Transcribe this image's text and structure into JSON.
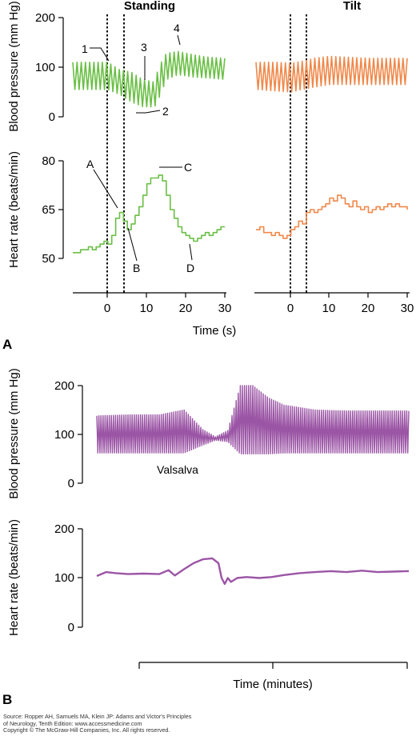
{
  "panel_a_label": "A",
  "panel_b_label": "B",
  "colors": {
    "standing": "#6abf45",
    "tilt": "#f0884a",
    "panel_b": "#9b55a5"
  },
  "source": {
    "line1": "Source: Ropper AH, Samuels MA, Klein JP: Adams and Victor's Principles",
    "line2": "of Neurology, Tenth Edition: www.accessmedicine.com",
    "line3": "Copyright © The McGraw-Hill Companies, Inc. All rights reserved."
  },
  "chart_data": [
    {
      "type": "line",
      "panel": "A",
      "title": "Standing",
      "ylabel": "Blood pressure (mm Hg)",
      "xlabel": "",
      "xlim": [
        -9,
        30
      ],
      "ylim": [
        0,
        200
      ],
      "yticks": [
        0,
        100,
        200
      ],
      "markers_x": [
        0,
        4
      ],
      "series": [
        {
          "color": "#6abf45",
          "envelope": {
            "x": [
              -9,
              -4,
              0,
              3,
              6,
              9,
              12,
              13,
              15,
              18,
              22,
              26,
              30
            ],
            "systolic": [
              110,
              110,
              110,
              95,
              90,
              75,
              70,
              100,
              128,
              132,
              125,
              120,
              118
            ],
            "diastolic": [
              55,
              55,
              55,
              45,
              30,
              20,
              20,
              35,
              75,
              85,
              80,
              78,
              75
            ]
          }
        }
      ],
      "annotations": [
        {
          "label": "1",
          "x": 0,
          "y": 110
        },
        {
          "label": "2",
          "x": 12,
          "y": 20
        },
        {
          "label": "3",
          "x": 6,
          "y": 75
        },
        {
          "label": "4",
          "x": 15,
          "y": 130
        }
      ]
    },
    {
      "type": "line",
      "panel": "A",
      "title": "Tilt",
      "ylabel": "",
      "xlabel": "",
      "xlim": [
        -9,
        30
      ],
      "ylim": [
        0,
        200
      ],
      "markers_x": [
        0,
        4
      ],
      "series": [
        {
          "color": "#f0884a",
          "envelope": {
            "x": [
              -9,
              -4,
              0,
              3,
              6,
              10,
              15,
              20,
              25,
              30
            ],
            "systolic": [
              110,
              110,
              108,
              112,
              118,
              122,
              120,
              118,
              118,
              118
            ],
            "diastolic": [
              55,
              52,
              50,
              55,
              60,
              65,
              65,
              65,
              65,
              65
            ]
          }
        }
      ]
    },
    {
      "type": "line",
      "panel": "A",
      "title": "",
      "ylabel": "Heart rate (beats/min)",
      "xlabel": "Time (s)",
      "xlim": [
        -9,
        30
      ],
      "ylim": [
        48,
        82
      ],
      "yticks": [
        50,
        65,
        80
      ],
      "xticks": [
        0,
        10,
        20,
        30
      ],
      "markers_x": [
        0,
        4
      ],
      "series": [
        {
          "color": "#6abf45",
          "x": [
            -9,
            -8,
            -7,
            -6,
            -5,
            -4,
            -3,
            -2,
            -1,
            0,
            1,
            2,
            3,
            4,
            5,
            6,
            7,
            8,
            9,
            10,
            11,
            12,
            13,
            14,
            15,
            16,
            17,
            18,
            19,
            20,
            21,
            22,
            23,
            24,
            25,
            26,
            27,
            28,
            29,
            30
          ],
          "y": [
            50,
            50,
            51,
            51,
            52,
            51,
            52,
            53,
            54,
            53,
            56,
            62,
            64,
            61,
            58,
            60,
            63,
            66,
            70,
            74,
            76,
            76,
            77,
            75,
            70,
            65,
            62,
            59,
            57,
            56,
            55,
            54,
            55,
            56,
            57,
            56,
            57,
            58,
            59,
            59
          ]
        }
      ],
      "annotations": [
        {
          "label": "A",
          "x": 3,
          "y": 64
        },
        {
          "label": "B",
          "x": 5,
          "y": 58
        },
        {
          "label": "C",
          "x": 13,
          "y": 77
        },
        {
          "label": "D",
          "x": 21,
          "y": 55
        }
      ]
    },
    {
      "type": "line",
      "panel": "A",
      "title": "",
      "ylabel": "",
      "xlabel": "",
      "xlim": [
        -9,
        30
      ],
      "ylim": [
        48,
        82
      ],
      "xticks": [
        0,
        10,
        20,
        30
      ],
      "markers_x": [
        0,
        4
      ],
      "series": [
        {
          "color": "#f0884a",
          "x": [
            -9,
            -8,
            -7,
            -6,
            -5,
            -4,
            -3,
            -2,
            -1,
            0,
            1,
            2,
            3,
            4,
            5,
            6,
            7,
            8,
            9,
            10,
            11,
            12,
            13,
            14,
            15,
            16,
            17,
            18,
            19,
            20,
            21,
            22,
            23,
            24,
            25,
            26,
            27,
            28,
            29,
            30
          ],
          "y": [
            58,
            59,
            57,
            57,
            56,
            57,
            56,
            55,
            56,
            58,
            59,
            61,
            60,
            64,
            65,
            64,
            65,
            66,
            67,
            69,
            68,
            70,
            69,
            67,
            66,
            68,
            66,
            65,
            66,
            64,
            65,
            66,
            65,
            66,
            67,
            66,
            67,
            66,
            66,
            65
          ]
        }
      ]
    },
    {
      "type": "line",
      "panel": "B",
      "title": "",
      "ylabel": "Blood pressure (mm Hg)",
      "xlabel": "",
      "ylim": [
        0,
        200
      ],
      "yticks": [
        0,
        100,
        200
      ],
      "annotations": [
        {
          "label": "Valsalva"
        }
      ],
      "series": [
        {
          "color": "#9b55a5",
          "envelope": {
            "x": [
              0,
              10,
              20,
              28,
              34,
              38,
              42,
              46,
              50,
              55,
              60,
              70,
              80,
              90,
              100
            ],
            "systolic": [
              138,
              140,
              140,
              150,
              110,
              95,
              108,
              200,
              200,
              175,
              160,
              150,
              148,
              148,
              148
            ],
            "diastolic": [
              62,
              62,
              62,
              62,
              78,
              88,
              85,
              60,
              60,
              60,
              62,
              62,
              62,
              62,
              62
            ]
          }
        }
      ]
    },
    {
      "type": "line",
      "panel": "B",
      "title": "",
      "ylabel": "Heart rate (beats/min)",
      "xlabel": "Time (minutes)",
      "ylim": [
        0,
        200
      ],
      "yticks": [
        0,
        100,
        200
      ],
      "series": [
        {
          "color": "#9b55a5",
          "x": [
            0,
            3,
            6,
            10,
            15,
            20,
            23,
            25,
            28,
            31,
            34,
            37,
            39,
            40,
            41,
            42,
            43,
            45,
            48,
            52,
            56,
            60,
            65,
            70,
            75,
            80,
            85,
            90,
            95,
            100
          ],
          "y": [
            104,
            112,
            110,
            108,
            109,
            108,
            116,
            105,
            118,
            130,
            138,
            140,
            130,
            100,
            88,
            100,
            92,
            100,
            102,
            100,
            102,
            106,
            110,
            112,
            114,
            112,
            115,
            112,
            113,
            114
          ]
        }
      ]
    }
  ]
}
